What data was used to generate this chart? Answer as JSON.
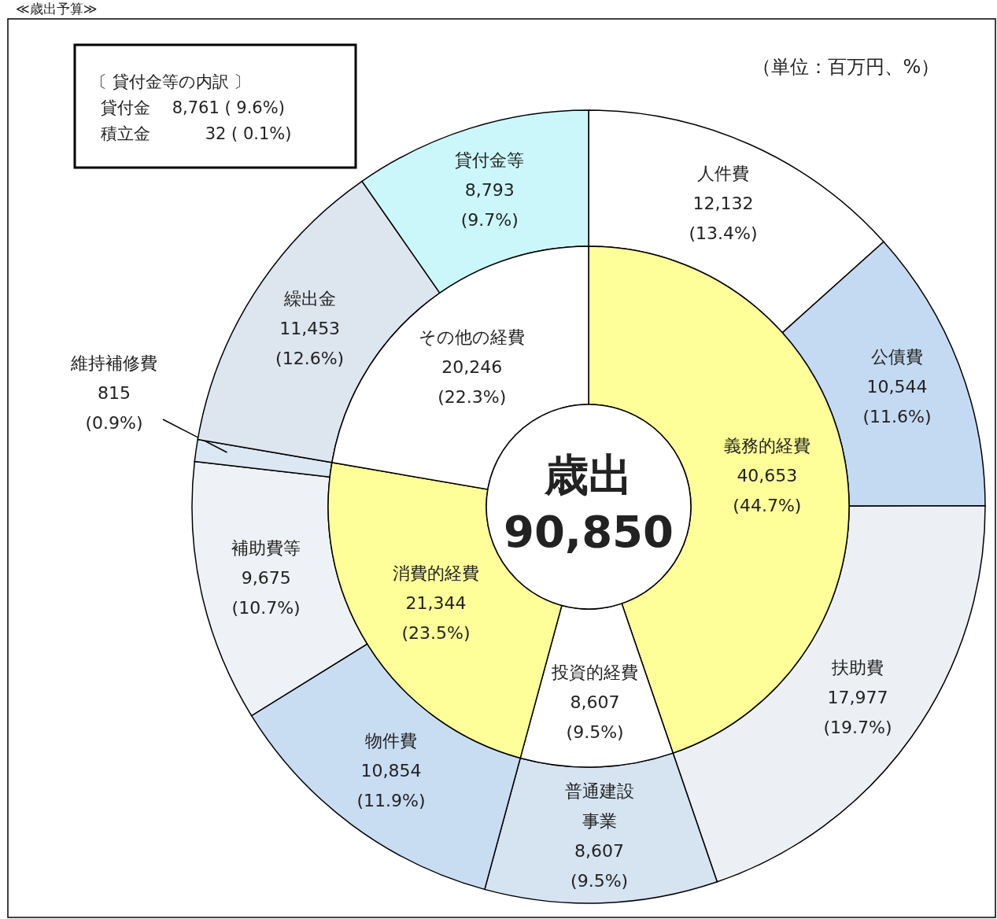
{
  "chart_data": [
    {
      "type": "donut",
      "categories": [
        "義務的経費",
        "投資的経費",
        "消費的経費",
        "その他の経費"
      ],
      "values": [
        40653,
        8607,
        21344,
        20246
      ],
      "value_labels": [
        "40,653\n(44.7%)",
        "8,607\n(9.5%)",
        "21,344\n(23.5%)",
        "20,246\n(22.3%)"
      ],
      "colors": [
        "#ffff99",
        "#ffffff",
        "#ffff99",
        "#ffffff"
      ],
      "annotations": [
        "歳出\n90,850",
        "（単位：百万円、%）",
        "〔 貸付金等の内訳 〕",
        "貸付金　 8,761 ( 9.6%)",
        "積立金　　　 32 ( 0.1%)",
        "≪歳出予算≫"
      ]
    },
    {
      "type": "donut",
      "categories": [
        "人件費",
        "公債費",
        "扶助費",
        "普通建設事業",
        "物件費",
        "補助費等",
        "維持補修費",
        "繰出金",
        "貸付金等"
      ],
      "values": [
        12132,
        10544,
        17977,
        8607,
        10854,
        9675,
        815,
        11453,
        8793
      ],
      "value_labels": [
        "12,132\n(13.4%)",
        "10,544\n(11.6%)",
        "17,977\n(19.7%)",
        "8,607\n(9.5%)",
        "10,854\n(11.9%)",
        "9,675\n(10.7%)",
        "815\n(0.9%)",
        "11,453\n(12.6%)",
        "8,793\n(9.7%)"
      ],
      "colors": [
        "#ffffff",
        "#c4daf2",
        "#eceff3",
        "#d6e3f1",
        "#c8dcf2",
        "#eef1f5",
        "#dbe7f2",
        "#dde5ef",
        "#ccf7fa"
      ]
    }
  ]
}
